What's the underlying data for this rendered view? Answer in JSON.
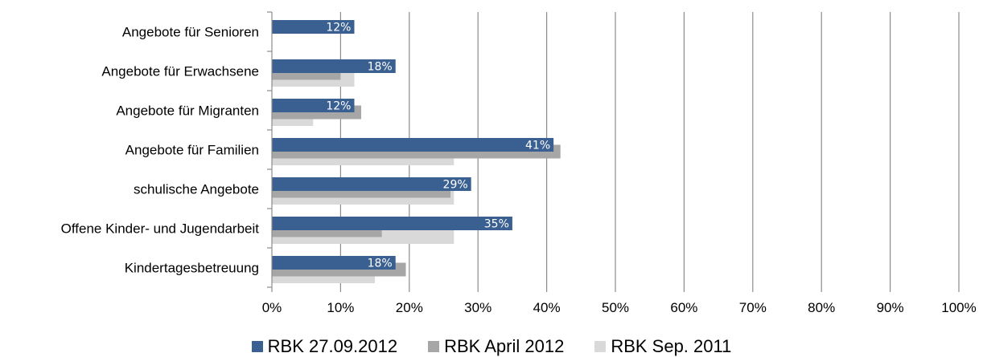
{
  "chart_data": {
    "type": "bar",
    "orientation": "horizontal",
    "categories": [
      "Angebote für Senioren",
      "Angebote für Erwachsene",
      "Angebote für Migranten",
      "Angebote für Familien",
      "schulische Angebote",
      "Offene Kinder- und Jugendarbeit",
      "Kindertagesbetreuung"
    ],
    "series": [
      {
        "name": "RBK 27.09.2012",
        "color": "#3a5f91",
        "values": [
          12,
          18,
          12,
          41,
          29,
          35,
          18
        ],
        "labels": [
          "12%",
          "18%",
          "12%",
          "41%",
          "29%",
          "35%",
          "18%"
        ]
      },
      {
        "name": "RBK April 2012",
        "color": "#a6a6a6",
        "values": [
          null,
          10,
          13,
          42,
          26,
          16,
          19.5
        ]
      },
      {
        "name": "RBK Sep. 2011",
        "color": "#d9d9d9",
        "values": [
          null,
          12,
          6,
          26.5,
          26.5,
          26.5,
          15
        ]
      }
    ],
    "xlim": [
      0,
      100
    ],
    "xticks": [
      0,
      10,
      20,
      30,
      40,
      50,
      60,
      70,
      80,
      90,
      100
    ],
    "xtick_labels": [
      "0%",
      "10%",
      "20%",
      "30%",
      "40%",
      "50%",
      "60%",
      "70%",
      "80%",
      "90%",
      "100%"
    ],
    "grid": "vertical",
    "legend_position": "bottom",
    "title": "",
    "xlabel": "",
    "ylabel": ""
  }
}
